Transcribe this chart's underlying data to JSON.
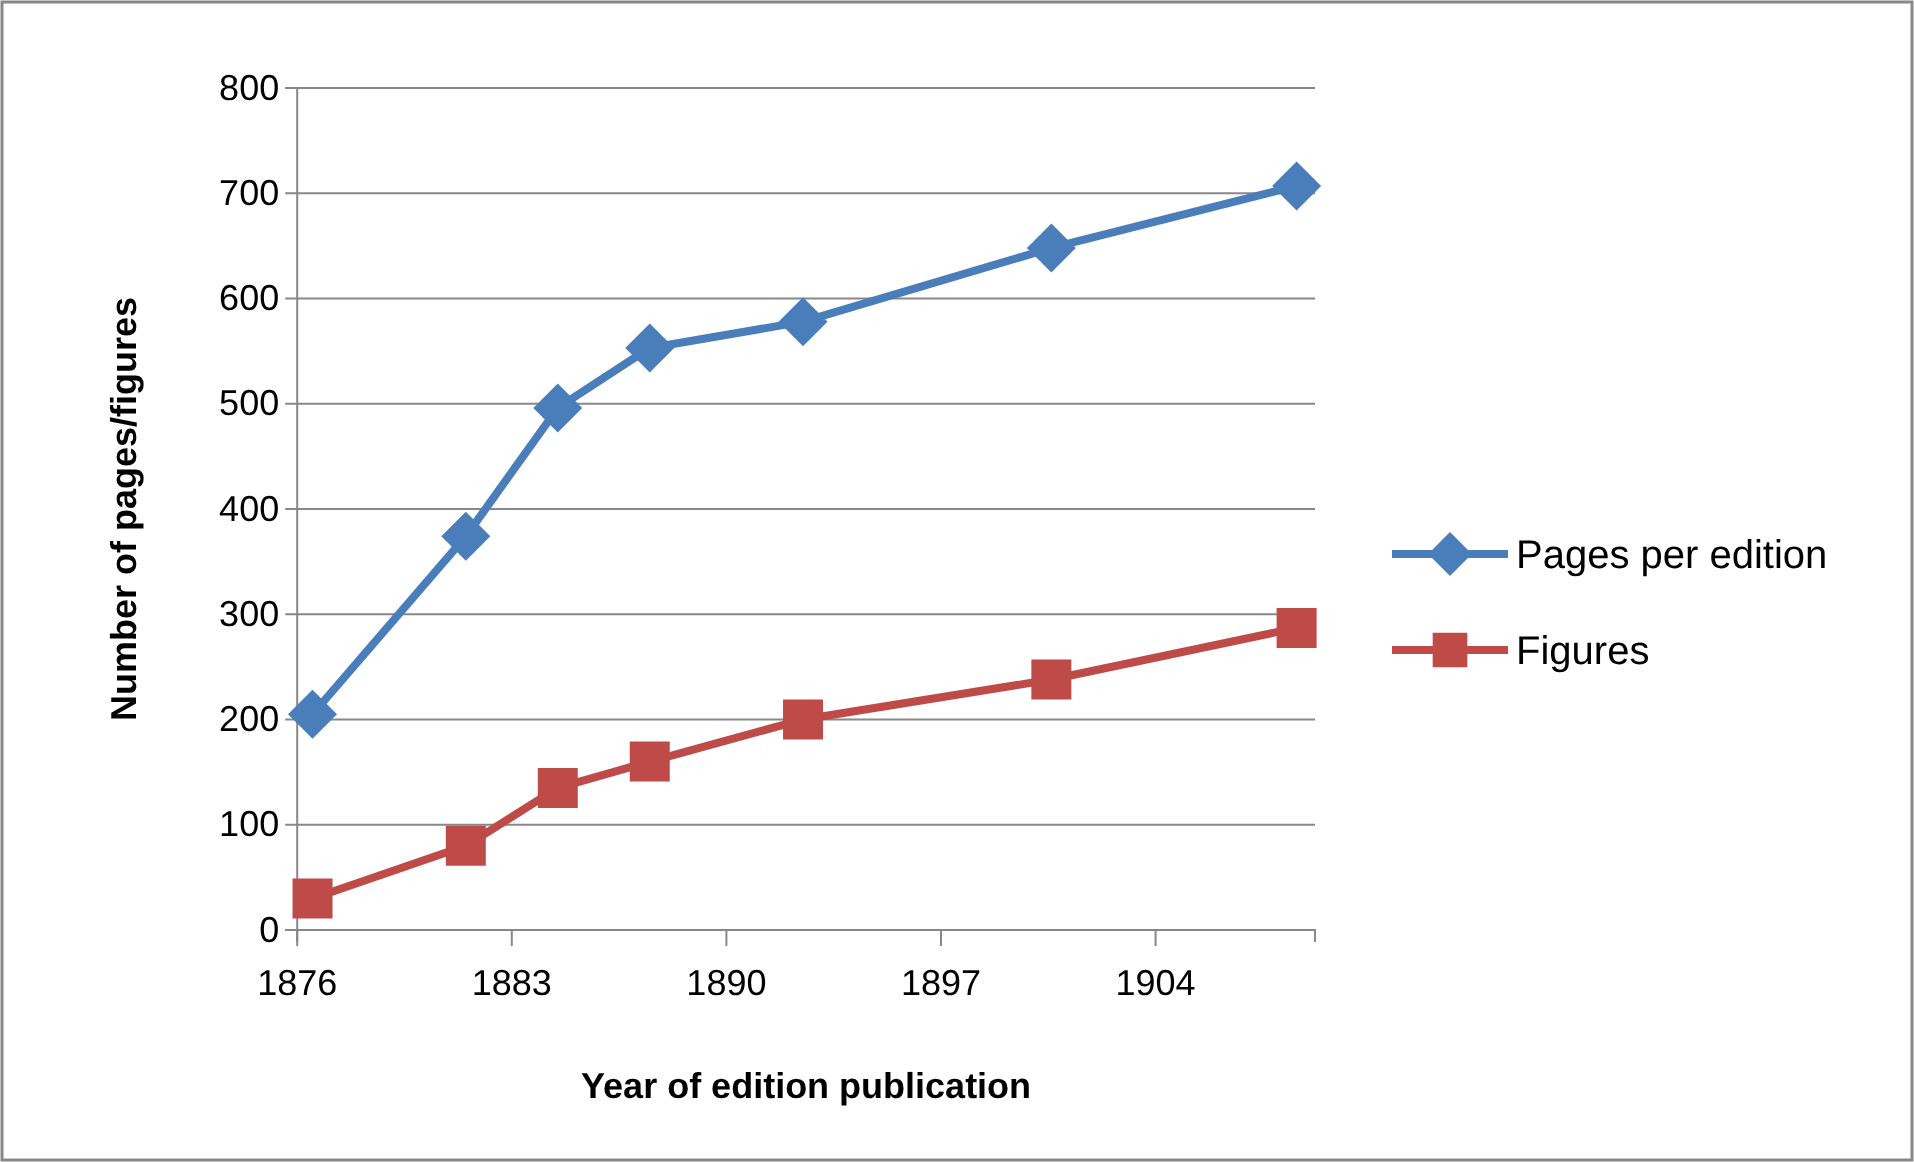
{
  "chart_data": {
    "type": "line",
    "xlabel": "Year of edition publication",
    "ylabel": "Number of pages/figures",
    "x": [
      1876.5,
      1881.5,
      1884.5,
      1887.5,
      1892.5,
      1900.6,
      1908.6
    ],
    "series": [
      {
        "name": "Pages per edition",
        "color": "#4a7ebb",
        "marker": "diamond",
        "values": [
          205,
          374,
          496,
          553,
          578,
          648,
          707
        ]
      },
      {
        "name": "Figures",
        "color": "#be4b48",
        "marker": "square",
        "values": [
          30,
          80,
          135,
          160,
          200,
          238,
          287
        ]
      }
    ],
    "xlim": [
      1876,
      1909.2
    ],
    "xticks": [
      1876,
      1883,
      1890,
      1897,
      1904
    ],
    "ylim": [
      0,
      800
    ],
    "yticks": [
      0,
      100,
      200,
      300,
      400,
      500,
      600,
      700,
      800
    ],
    "grid": "y",
    "legend": "right",
    "line_style": "solid"
  }
}
